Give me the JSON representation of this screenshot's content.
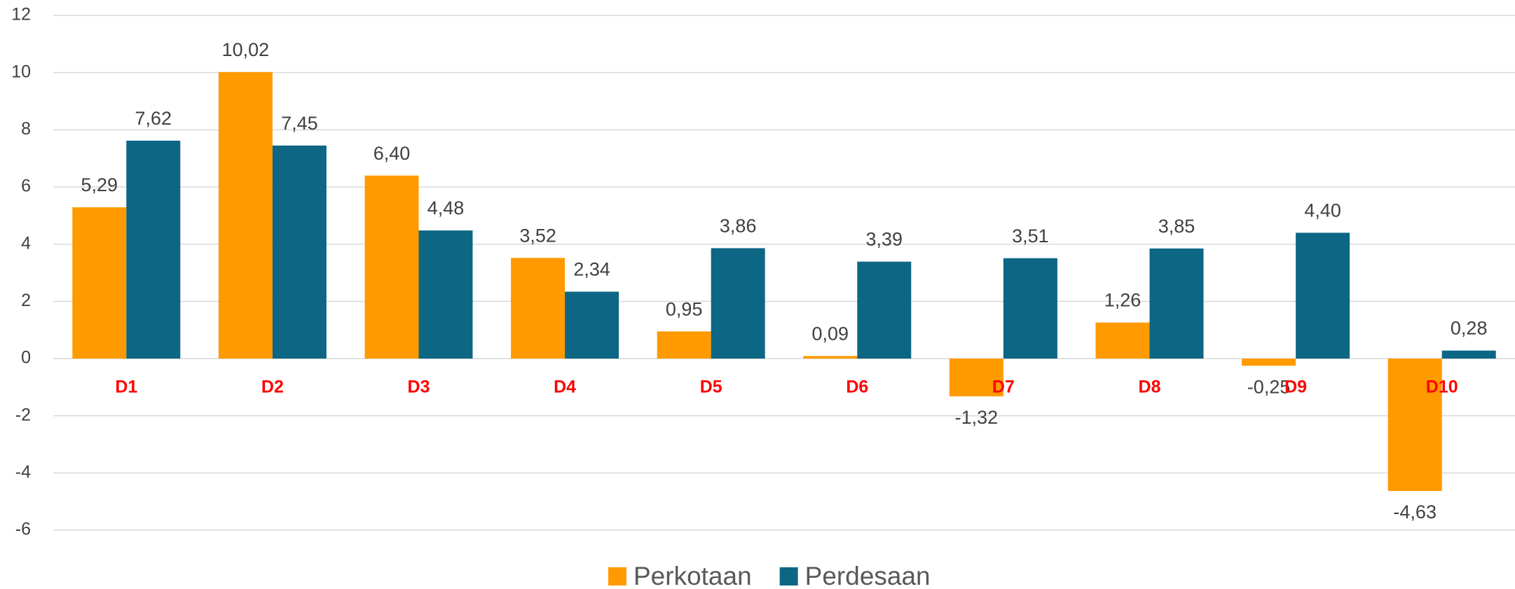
{
  "chart_data": {
    "type": "bar",
    "categories": [
      "D1",
      "D2",
      "D3",
      "D4",
      "D5",
      "D6",
      "D7",
      "D8",
      "D9",
      "D10"
    ],
    "series": [
      {
        "name": "Perkotaan",
        "color": "#ff9a00",
        "values": [
          5.29,
          10.02,
          6.4,
          3.52,
          0.95,
          0.09,
          -1.32,
          1.26,
          -0.25,
          -4.63
        ],
        "value_labels": [
          "5,29",
          "10,02",
          "6,40",
          "3,52",
          "0,95",
          "0,09",
          "-1,32",
          "1,26",
          "-0,25",
          "-4,63"
        ]
      },
      {
        "name": "Perdesaan",
        "color": "#0d6684",
        "values": [
          7.62,
          7.45,
          4.48,
          2.34,
          3.86,
          3.39,
          3.51,
          3.85,
          4.4,
          0.28
        ],
        "value_labels": [
          "7,62",
          "7,45",
          "4,48",
          "2,34",
          "3,86",
          "3,39",
          "3,51",
          "3,85",
          "4,40",
          "0,28"
        ]
      }
    ],
    "ylim": [
      -6,
      12
    ],
    "yticks": [
      -6,
      -4,
      -2,
      0,
      2,
      4,
      6,
      8,
      10,
      12
    ],
    "grid": true,
    "legend": "bottom"
  }
}
